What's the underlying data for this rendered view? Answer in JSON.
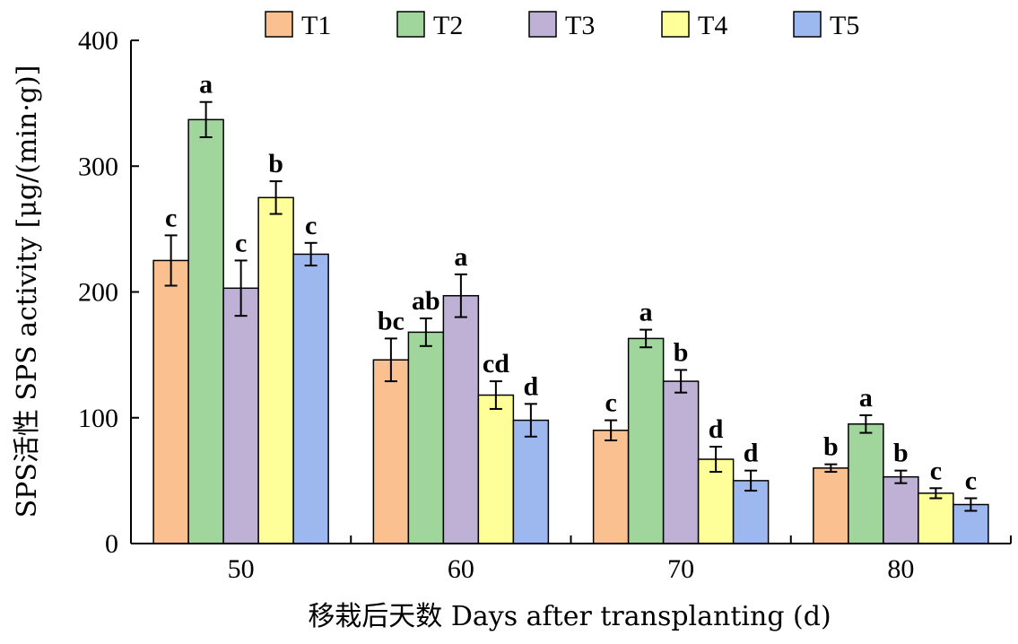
{
  "chart_data": {
    "type": "bar",
    "categories": [
      "50",
      "60",
      "70",
      "80"
    ],
    "xlabel": "移栽后天数 Days after transplanting (d)",
    "ylabel": "SPS活性 SPS activity [μg/(min·g)]",
    "ylim": [
      0,
      400
    ],
    "yticks": [
      0,
      100,
      200,
      300,
      400
    ],
    "grid": false,
    "legend_position": "top",
    "series": [
      {
        "name": "T1",
        "color": "#FAC090",
        "values": [
          225,
          146,
          90,
          60
        ],
        "errors": [
          20,
          17,
          8,
          3
        ],
        "labels": [
          "c",
          "bc",
          "c",
          "b"
        ]
      },
      {
        "name": "T2",
        "color": "#A0D69C",
        "values": [
          337,
          168,
          163,
          95
        ],
        "errors": [
          14,
          11,
          7,
          7
        ],
        "labels": [
          "a",
          "ab",
          "a",
          "a"
        ]
      },
      {
        "name": "T3",
        "color": "#BFB0D6",
        "values": [
          203,
          197,
          129,
          53
        ],
        "errors": [
          22,
          17,
          9,
          5
        ],
        "labels": [
          "c",
          "a",
          "b",
          "b"
        ]
      },
      {
        "name": "T4",
        "color": "#FFFF99",
        "values": [
          275,
          118,
          67,
          40
        ],
        "errors": [
          13,
          11,
          10,
          4
        ],
        "labels": [
          "b",
          "cd",
          "d",
          "c"
        ]
      },
      {
        "name": "T5",
        "color": "#9DB8EE",
        "values": [
          230,
          98,
          50,
          31
        ],
        "errors": [
          9,
          13,
          8,
          5
        ],
        "labels": [
          "c",
          "d",
          "d",
          "c"
        ]
      }
    ]
  }
}
